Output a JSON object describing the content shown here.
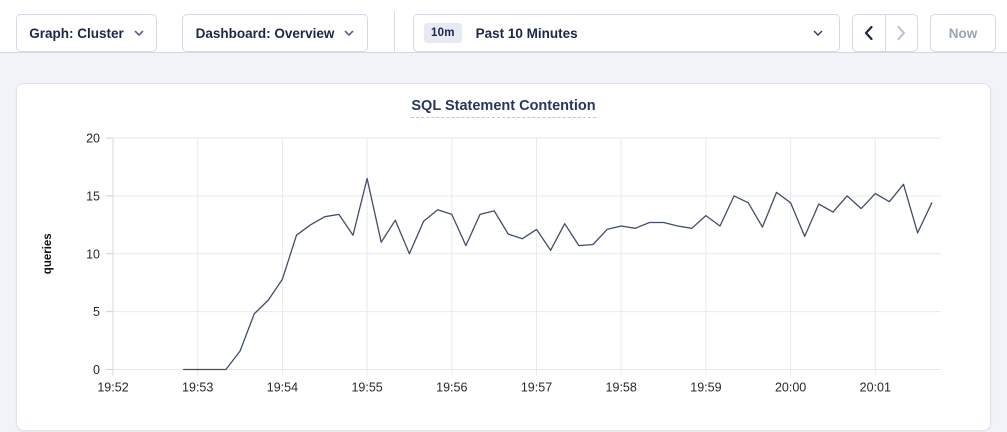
{
  "header": {
    "graph_dropdown_label": "Graph: Cluster",
    "dashboard_dropdown_label": "Dashboard: Overview",
    "time_picker": {
      "badge": "10m",
      "selected": "Past 10 Minutes"
    },
    "now_button_label": "Now"
  },
  "icons": {
    "chevron_down_icon": "⌄",
    "chevron_left_icon": "‹",
    "chevron_right_icon": "›"
  },
  "colors": {
    "accent_navy": "#1c2747",
    "title_navy": "#26365f",
    "series_line": "#414e6b",
    "grid": "#e9e9e9",
    "axis": "#d9d9d9",
    "disabled_text": "#9aa3b8",
    "badge_bg": "#e7eaf2",
    "page_bg": "#f1f3f8"
  },
  "chart_data": {
    "type": "line",
    "title": "SQL Statement Contention",
    "xlabel": "",
    "ylabel": "queries",
    "ylim": [
      0,
      20
    ],
    "yticks": [
      0,
      5,
      10,
      15,
      20
    ],
    "x_tick_labels": [
      "19:52",
      "19:53",
      "19:54",
      "19:55",
      "19:56",
      "19:57",
      "19:58",
      "19:59",
      "20:00",
      "20:01"
    ],
    "x_base_time": "19:52:00",
    "grid": true,
    "legend": "none",
    "series": [
      {
        "name": "queries",
        "color": "#414e6b",
        "points": [
          [
            "19:52:50",
            0
          ],
          [
            "19:53:00",
            0
          ],
          [
            "19:53:10",
            0
          ],
          [
            "19:53:20",
            0
          ],
          [
            "19:53:30",
            1.6
          ],
          [
            "19:53:40",
            4.8
          ],
          [
            "19:53:50",
            6.0
          ],
          [
            "19:54:00",
            7.8
          ],
          [
            "19:54:10",
            11.6
          ],
          [
            "19:54:20",
            12.5
          ],
          [
            "19:54:30",
            13.2
          ],
          [
            "19:54:40",
            13.4
          ],
          [
            "19:54:50",
            11.6
          ],
          [
            "19:55:00",
            16.5
          ],
          [
            "19:55:10",
            11.0
          ],
          [
            "19:55:20",
            12.9
          ],
          [
            "19:55:30",
            10.0
          ],
          [
            "19:55:40",
            12.8
          ],
          [
            "19:55:50",
            13.8
          ],
          [
            "19:56:00",
            13.4
          ],
          [
            "19:56:10",
            10.7
          ],
          [
            "19:56:20",
            13.4
          ],
          [
            "19:56:30",
            13.7
          ],
          [
            "19:56:40",
            11.7
          ],
          [
            "19:56:50",
            11.3
          ],
          [
            "19:57:00",
            12.1
          ],
          [
            "19:57:10",
            10.3
          ],
          [
            "19:57:20",
            12.6
          ],
          [
            "19:57:30",
            10.7
          ],
          [
            "19:57:40",
            10.8
          ],
          [
            "19:57:50",
            12.1
          ],
          [
            "19:58:00",
            12.4
          ],
          [
            "19:58:10",
            12.2
          ],
          [
            "19:58:20",
            12.7
          ],
          [
            "19:58:30",
            12.7
          ],
          [
            "19:58:40",
            12.4
          ],
          [
            "19:58:50",
            12.2
          ],
          [
            "19:59:00",
            13.3
          ],
          [
            "19:59:10",
            12.4
          ],
          [
            "19:59:20",
            15.0
          ],
          [
            "19:59:30",
            14.4
          ],
          [
            "19:59:40",
            12.3
          ],
          [
            "19:59:50",
            15.3
          ],
          [
            "20:00:00",
            14.4
          ],
          [
            "20:00:10",
            11.5
          ],
          [
            "20:00:20",
            14.3
          ],
          [
            "20:00:30",
            13.6
          ],
          [
            "20:00:40",
            15.0
          ],
          [
            "20:00:50",
            13.9
          ],
          [
            "20:01:00",
            15.2
          ],
          [
            "20:01:10",
            14.5
          ],
          [
            "20:01:20",
            16.0
          ],
          [
            "20:01:30",
            11.8
          ],
          [
            "20:01:40",
            14.4
          ]
        ]
      }
    ]
  }
}
